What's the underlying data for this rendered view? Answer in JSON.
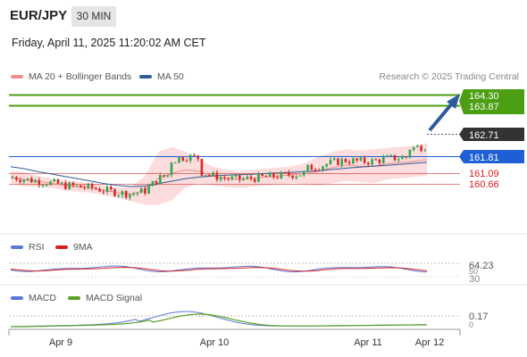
{
  "header": {
    "symbol": "EUR/JPY",
    "timeframe": "30 MIN",
    "timestamp": "Friday, April 11, 2025 11:20:02 AM CET"
  },
  "legend": {
    "ma20": "MA 20 + Bollinger Bands",
    "ma50": "MA 50",
    "credit": "Research © 2025 Trading Central",
    "rsi": "RSI",
    "rsi_ma": "9MA",
    "macd": "MACD",
    "macd_signal": "MACD Signal"
  },
  "colors": {
    "green": "#4c9e12",
    "blue_line": "#1f5fd6",
    "red_line": "#e28080",
    "bollinger_fill": "#fcd6d6",
    "ma20": "#f08c8c",
    "ma50": "#2d5b9a",
    "candle_up": "#2ea84e",
    "candle_down": "#d62a2a",
    "last_price_bg": "#333333",
    "rsi_line": "#5a78d6",
    "rsi_ma_line": "#d62020",
    "macd_line": "#5a78d6",
    "macd_signal_line": "#5ba024"
  },
  "levels": [
    {
      "value": 164.3,
      "label": "164.30",
      "type": "resistance",
      "color": "#4c9e12"
    },
    {
      "value": 163.87,
      "label": "163.87",
      "type": "resistance",
      "color": "#4c9e12"
    },
    {
      "value": 162.71,
      "label": "162.71",
      "type": "last",
      "color": "#333333"
    },
    {
      "value": 161.81,
      "label": "161.81",
      "type": "pivot",
      "color": "#1f5fd6"
    },
    {
      "value": 161.09,
      "label": "161.09",
      "type": "support",
      "color": "#d62020"
    },
    {
      "value": 160.66,
      "label": "160.66",
      "type": "support",
      "color": "#d62020"
    }
  ],
  "rsi_panel": {
    "labels": [
      "64.23",
      "50",
      "30"
    ]
  },
  "macd_panel": {
    "labels": [
      "0.17",
      "0"
    ]
  },
  "chart_data": {
    "type": "line",
    "x_labels": [
      "Apr 9",
      "Apr 10",
      "Apr 11",
      "Apr 12"
    ],
    "y_range": [
      159.8,
      164.6
    ],
    "series": [
      {
        "name": "MA 20",
        "values": [
          161.15,
          161.05,
          160.98,
          160.9,
          160.8,
          160.75,
          160.7,
          160.6,
          160.5,
          160.45,
          160.6,
          161.1,
          161.3,
          161.45,
          161.4,
          161.2,
          161.1,
          161.05,
          161.1,
          161.15,
          161.2,
          161.25,
          161.3,
          161.4,
          161.55,
          161.65,
          161.6,
          161.6,
          161.7,
          161.75,
          161.8,
          161.88
        ]
      },
      {
        "name": "MA 50",
        "values": [
          161.58,
          161.5,
          161.38,
          161.28,
          161.18,
          161.08,
          160.98,
          160.88,
          160.8,
          160.76,
          160.78,
          160.88,
          160.98,
          161.08,
          161.15,
          161.2,
          161.23,
          161.25,
          161.27,
          161.3,
          161.32,
          161.35,
          161.38,
          161.42,
          161.47,
          161.52,
          161.56,
          161.6,
          161.64,
          161.68,
          161.72,
          161.76
        ]
      }
    ],
    "bollinger": {
      "upper": [
        161.4,
        161.35,
        161.2,
        161.1,
        161.0,
        160.95,
        160.9,
        160.8,
        160.7,
        160.75,
        161.2,
        162.2,
        162.4,
        162.2,
        161.9,
        161.6,
        161.45,
        161.4,
        161.45,
        161.5,
        161.55,
        161.6,
        161.75,
        162.0,
        162.2,
        162.3,
        162.25,
        162.3,
        162.35,
        162.4,
        162.45,
        162.55
      ]
    }
  }
}
